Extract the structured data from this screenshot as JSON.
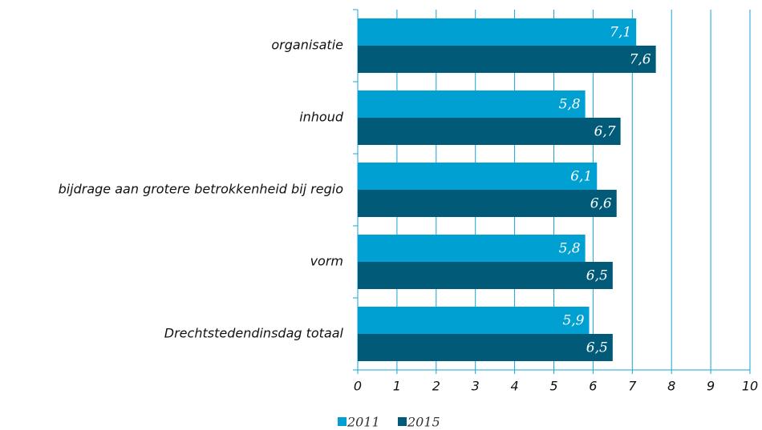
{
  "chart_data": {
    "type": "bar",
    "orientation": "horizontal",
    "categories": [
      "organisatie",
      "inhoud",
      "bijdrage aan grotere betrokkenheid bij regio",
      "vorm",
      "Drechtstedendinsdag totaal"
    ],
    "series": [
      {
        "name": "2011",
        "color": "#00a0d2",
        "values": [
          7.1,
          5.8,
          6.1,
          5.8,
          5.9
        ],
        "value_labels": [
          "7,1",
          "5,8",
          "6,1",
          "5,8",
          "5,9"
        ]
      },
      {
        "name": "2015",
        "color": "#005a78",
        "values": [
          7.6,
          6.7,
          6.6,
          6.5,
          6.5
        ],
        "value_labels": [
          "7,6",
          "6,7",
          "6,6",
          "6,5",
          "6,5"
        ]
      }
    ],
    "xlim": [
      0,
      10
    ],
    "xticks": [
      0,
      1,
      2,
      3,
      4,
      5,
      6,
      7,
      8,
      9,
      10
    ],
    "grid": true,
    "legend": "bottom"
  }
}
